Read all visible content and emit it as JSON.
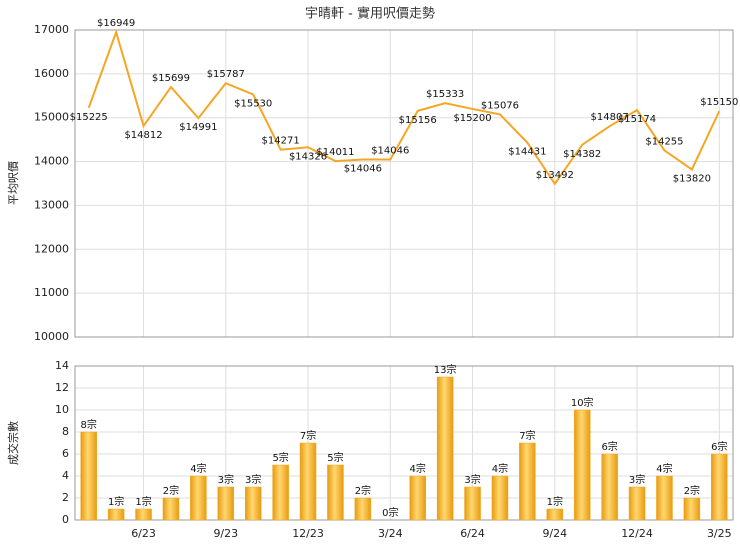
{
  "chart_data": [
    {
      "type": "line",
      "title": "宇晴軒 - 實用呎價走勢",
      "y_label": "平均呎價",
      "color": "#f5a623",
      "values": [
        15225,
        16949,
        14812,
        15699,
        14991,
        15787,
        15530,
        14271,
        14326,
        14011,
        14046,
        14046,
        15156,
        15333,
        15200,
        15076,
        14431,
        13492,
        14382,
        14807,
        15174,
        14255,
        13820,
        15150
      ],
      "value_labels": [
        "$15225",
        "$16949",
        "$14812",
        "$15699",
        "$14991",
        "$15787",
        "$15530",
        "$14271",
        "$14326",
        "$14011",
        "$14046",
        "$14046",
        "$15156",
        "$15333",
        "$15200",
        "$15076",
        "$14431",
        "$13492",
        "$14382",
        "$14807",
        "$15174",
        "$14255",
        "$13820",
        "$15150"
      ],
      "ylim": [
        10000,
        17000
      ],
      "yticks": [
        10000,
        11000,
        12000,
        13000,
        14000,
        15000,
        16000,
        17000
      ],
      "grid": true
    },
    {
      "type": "bar",
      "y_label": "成交宗數",
      "color": "#f0a820",
      "categories": [
        null,
        null,
        "6/23",
        null,
        null,
        "9/23",
        null,
        null,
        "12/23",
        null,
        null,
        "3/24",
        null,
        null,
        "6/24",
        null,
        null,
        "9/24",
        null,
        null,
        "12/24",
        null,
        null,
        "3/25"
      ],
      "values": [
        8,
        1,
        1,
        2,
        4,
        3,
        3,
        5,
        7,
        5,
        2,
        0,
        4,
        13,
        3,
        4,
        7,
        1,
        10,
        6,
        3,
        4,
        2,
        6
      ],
      "value_labels": [
        "8宗",
        "1宗",
        "1宗",
        "2宗",
        "4宗",
        "3宗",
        "3宗",
        "5宗",
        "7宗",
        "5宗",
        "2宗",
        "0宗",
        "4宗",
        "13宗",
        "3宗",
        "4宗",
        "7宗",
        "1宗",
        "10宗",
        "6宗",
        "3宗",
        "4宗",
        "2宗",
        "6宗"
      ],
      "ylim": [
        0,
        14
      ],
      "yticks": [
        0,
        2,
        4,
        6,
        8,
        10,
        12,
        14
      ],
      "grid": true
    }
  ]
}
